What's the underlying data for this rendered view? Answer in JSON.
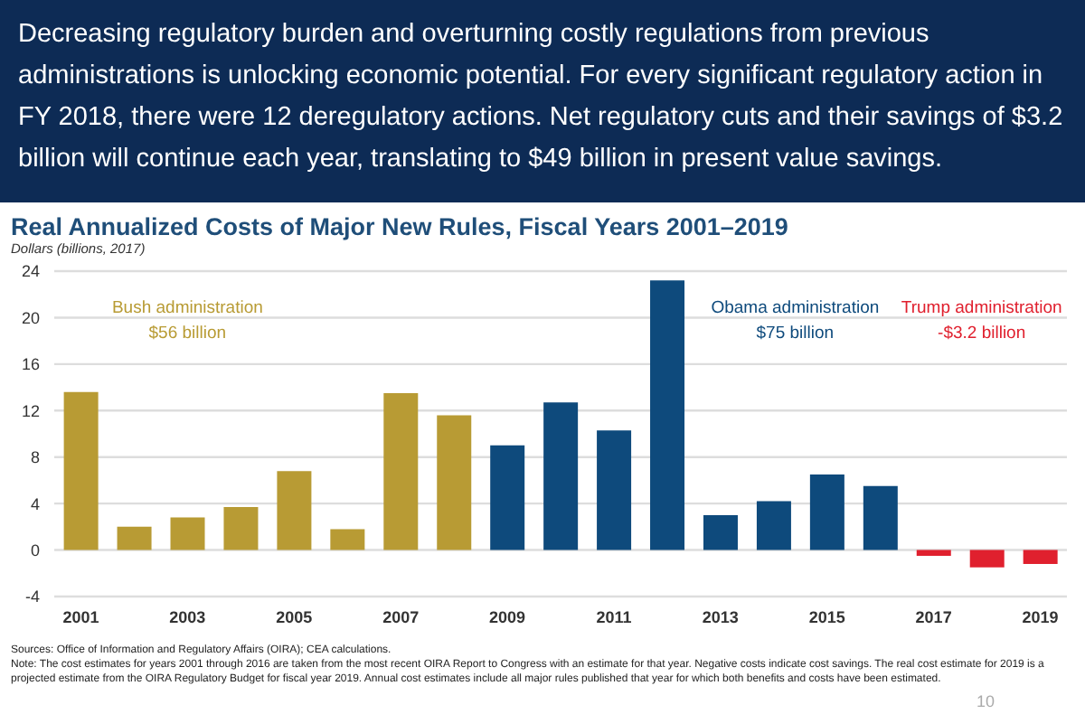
{
  "chart_data": {
    "type": "bar",
    "subtitle": "Decreasing regulatory burden and overturning costly regulations from previous administrations is unlocking economic potential. For every significant regulatory action in FY 2018, there were 12 deregulatory actions. Net regulatory cuts and their savings of $3.2 billion will continue each year, translating to $49 billion in present value savings.",
    "title": "Real Annualized Costs of Major New Rules, Fiscal Years 2001–2019",
    "ylabel": "Dollars (billions, 2017)",
    "categories": [
      "2001",
      null,
      "2003",
      null,
      "2005",
      null,
      "2007",
      null,
      "2009",
      null,
      "2011",
      null,
      "2013",
      null,
      "2015",
      null,
      "2017",
      null,
      "2019"
    ],
    "values": [
      13.6,
      2.0,
      2.8,
      3.7,
      6.8,
      1.8,
      13.5,
      11.6,
      9.0,
      12.7,
      10.3,
      23.2,
      3.0,
      4.2,
      6.5,
      5.5,
      -0.5,
      -1.5,
      -1.2
    ],
    "colors": [
      "#b89b34",
      "#b89b34",
      "#b89b34",
      "#b89b34",
      "#b89b34",
      "#b89b34",
      "#b89b34",
      "#b89b34",
      "#0e4a7c",
      "#0e4a7c",
      "#0e4a7c",
      "#0e4a7c",
      "#0e4a7c",
      "#0e4a7c",
      "#0e4a7c",
      "#0e4a7c",
      "#e0202e",
      "#e0202e",
      "#e0202e"
    ],
    "ylim": [
      -4,
      24
    ],
    "yticks": [
      -4,
      0,
      4,
      8,
      12,
      16,
      20,
      24
    ],
    "grid": "y",
    "annotations": [
      "Bush administration\n$56 billion",
      "Obama administration\n$75 billion",
      "Trump administration\n-$3.2 billion",
      "Sources: Office of Information and Regulatory Affairs (OIRA); CEA calculations.",
      "Note: The cost estimates for years 2001 through 2016 are taken from the most recent OIRA Report to Congress with an estimate for that year. Negative costs indicate cost savings. The real cost estimate for 2019 is a projected estimate from the OIRA Regulatory Budget for fiscal year 2019. Annual cost estimates include all major rules published that year for which both benefits and costs have been estimated.",
      "10"
    ]
  }
}
